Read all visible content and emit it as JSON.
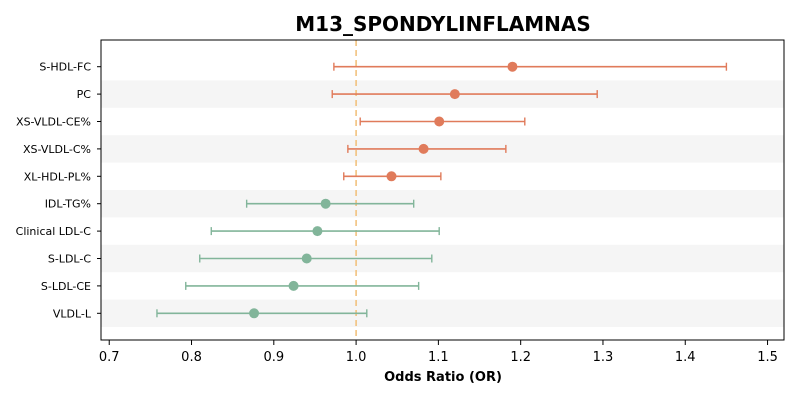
{
  "chart_data": {
    "type": "forest",
    "title": "M13_SPONDYLINFLAMNAS",
    "xlabel": "Odds Ratio (OR)",
    "ylabel": "",
    "xlim": [
      0.69,
      1.52
    ],
    "xticks": [
      0.7,
      0.8,
      0.9,
      1.0,
      1.1,
      1.2,
      1.3,
      1.4,
      1.5
    ],
    "xtick_labels": [
      "0.7",
      "0.8",
      "0.9",
      "1.0",
      "1.1",
      "1.2",
      "1.3",
      "1.4",
      "1.5"
    ],
    "reference_line": 1.0,
    "grid": false,
    "alternating_row_shading": true,
    "colors": {
      "positive": "#E07B5B",
      "negative": "#82B59A",
      "reference_line": "#F2C27E",
      "row_shade": "#F5F5F5"
    },
    "rows": [
      {
        "label": "S-HDL-FC",
        "or": 1.19,
        "ci_low": 0.973,
        "ci_high": 1.45,
        "group": "positive"
      },
      {
        "label": "PC",
        "or": 1.12,
        "ci_low": 0.971,
        "ci_high": 1.293,
        "group": "positive"
      },
      {
        "label": "XS-VLDL-CE%",
        "or": 1.101,
        "ci_low": 1.005,
        "ci_high": 1.205,
        "group": "positive"
      },
      {
        "label": "XS-VLDL-C%",
        "or": 1.082,
        "ci_low": 0.99,
        "ci_high": 1.182,
        "group": "positive"
      },
      {
        "label": "XL-HDL-PL%",
        "or": 1.043,
        "ci_low": 0.985,
        "ci_high": 1.103,
        "group": "positive"
      },
      {
        "label": "IDL-TG%",
        "or": 0.963,
        "ci_low": 0.867,
        "ci_high": 1.07,
        "group": "negative"
      },
      {
        "label": "Clinical LDL-C",
        "or": 0.953,
        "ci_low": 0.824,
        "ci_high": 1.101,
        "group": "negative"
      },
      {
        "label": "S-LDL-C",
        "or": 0.94,
        "ci_low": 0.81,
        "ci_high": 1.092,
        "group": "negative"
      },
      {
        "label": "S-LDL-CE",
        "or": 0.924,
        "ci_low": 0.793,
        "ci_high": 1.076,
        "group": "negative"
      },
      {
        "label": "VLDL-L",
        "or": 0.876,
        "ci_low": 0.758,
        "ci_high": 1.013,
        "group": "negative"
      }
    ]
  }
}
